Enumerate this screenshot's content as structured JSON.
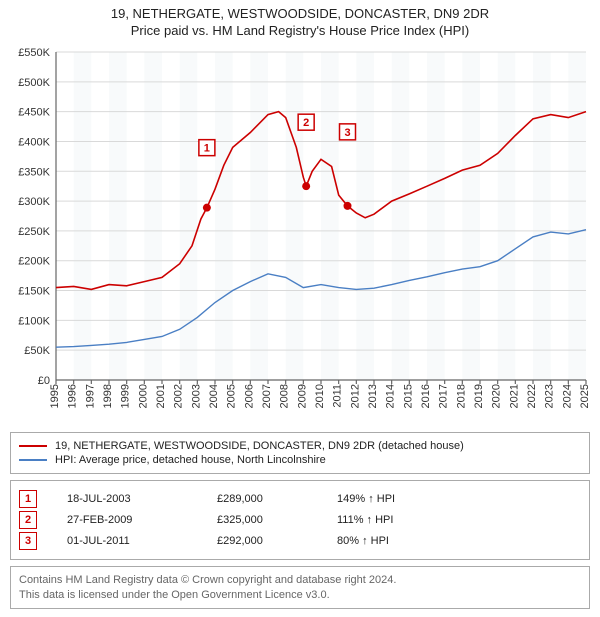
{
  "title1": "19, NETHERGATE, WESTWOODSIDE, DONCASTER, DN9 2DR",
  "title2": "Price paid vs. HM Land Registry's House Price Index (HPI)",
  "chart": {
    "type": "line",
    "background_color": "#ffffff",
    "band_color": "#f4f6f9",
    "grid_color": "#d9d9d9",
    "axis_color": "#666666",
    "label_color": "#333333",
    "label_fontsize": 11,
    "ylim": [
      0,
      550000
    ],
    "ytick_step": 50000,
    "yticks": [
      "£0",
      "£50K",
      "£100K",
      "£150K",
      "£200K",
      "£250K",
      "£300K",
      "£350K",
      "£400K",
      "£450K",
      "£500K",
      "£550K"
    ],
    "xlim": [
      1995,
      2025
    ],
    "xticks": [
      1995,
      1996,
      1997,
      1998,
      1999,
      2000,
      2001,
      2002,
      2003,
      2004,
      2005,
      2006,
      2007,
      2008,
      2009,
      2010,
      2011,
      2012,
      2013,
      2014,
      2015,
      2016,
      2017,
      2018,
      2019,
      2020,
      2021,
      2022,
      2023,
      2024,
      2025
    ],
    "series": [
      {
        "name": "property",
        "color": "#cc0000",
        "line_width": 1.6,
        "points": [
          [
            1995,
            155000
          ],
          [
            1996,
            157000
          ],
          [
            1997,
            152000
          ],
          [
            1998,
            160000
          ],
          [
            1999,
            158000
          ],
          [
            2000,
            165000
          ],
          [
            2001,
            172000
          ],
          [
            2002,
            195000
          ],
          [
            2002.7,
            225000
          ],
          [
            2003.2,
            270000
          ],
          [
            2003.54,
            289000
          ],
          [
            2004,
            320000
          ],
          [
            2004.5,
            360000
          ],
          [
            2005,
            390000
          ],
          [
            2006,
            415000
          ],
          [
            2007,
            445000
          ],
          [
            2007.6,
            450000
          ],
          [
            2008,
            440000
          ],
          [
            2008.6,
            390000
          ],
          [
            2009,
            340000
          ],
          [
            2009.16,
            325000
          ],
          [
            2009.5,
            350000
          ],
          [
            2010,
            370000
          ],
          [
            2010.6,
            358000
          ],
          [
            2011,
            310000
          ],
          [
            2011.5,
            292000
          ],
          [
            2012,
            280000
          ],
          [
            2012.5,
            272000
          ],
          [
            2013,
            278000
          ],
          [
            2014,
            300000
          ],
          [
            2015,
            312000
          ],
          [
            2016,
            325000
          ],
          [
            2017,
            338000
          ],
          [
            2018,
            352000
          ],
          [
            2019,
            360000
          ],
          [
            2020,
            380000
          ],
          [
            2021,
            410000
          ],
          [
            2022,
            438000
          ],
          [
            2023,
            445000
          ],
          [
            2024,
            440000
          ],
          [
            2025,
            450000
          ]
        ]
      },
      {
        "name": "hpi",
        "color": "#4a7fc4",
        "line_width": 1.4,
        "points": [
          [
            1995,
            55000
          ],
          [
            1996,
            56000
          ],
          [
            1997,
            58000
          ],
          [
            1998,
            60000
          ],
          [
            1999,
            63000
          ],
          [
            2000,
            68000
          ],
          [
            2001,
            73000
          ],
          [
            2002,
            85000
          ],
          [
            2003,
            105000
          ],
          [
            2004,
            130000
          ],
          [
            2005,
            150000
          ],
          [
            2006,
            165000
          ],
          [
            2007,
            178000
          ],
          [
            2008,
            172000
          ],
          [
            2009,
            155000
          ],
          [
            2010,
            160000
          ],
          [
            2011,
            155000
          ],
          [
            2012,
            152000
          ],
          [
            2013,
            154000
          ],
          [
            2014,
            160000
          ],
          [
            2015,
            167000
          ],
          [
            2016,
            173000
          ],
          [
            2017,
            180000
          ],
          [
            2018,
            186000
          ],
          [
            2019,
            190000
          ],
          [
            2020,
            200000
          ],
          [
            2021,
            220000
          ],
          [
            2022,
            240000
          ],
          [
            2023,
            248000
          ],
          [
            2024,
            245000
          ],
          [
            2025,
            252000
          ]
        ]
      }
    ],
    "sale_markers": [
      {
        "n": "1",
        "year": 2003.54,
        "price": 289000,
        "box_y_offset": -68
      },
      {
        "n": "2",
        "year": 2009.16,
        "price": 325000,
        "box_y_offset": -72
      },
      {
        "n": "3",
        "year": 2011.5,
        "price": 292000,
        "box_y_offset": -82
      }
    ],
    "marker_dot_color": "#cc0000",
    "marker_dot_radius": 4
  },
  "legend": {
    "items": [
      {
        "color": "#cc0000",
        "label": "19, NETHERGATE, WESTWOODSIDE, DONCASTER, DN9 2DR (detached house)"
      },
      {
        "color": "#4a7fc4",
        "label": "HPI: Average price, detached house, North Lincolnshire"
      }
    ]
  },
  "sales": [
    {
      "n": "1",
      "date": "18-JUL-2003",
      "price": "£289,000",
      "pct": "149% ↑ HPI"
    },
    {
      "n": "2",
      "date": "27-FEB-2009",
      "price": "£325,000",
      "pct": "111% ↑ HPI"
    },
    {
      "n": "3",
      "date": "01-JUL-2011",
      "price": "£292,000",
      "pct": "80% ↑ HPI"
    }
  ],
  "license": {
    "line1": "Contains HM Land Registry data © Crown copyright and database right 2024.",
    "line2": "This data is licensed under the Open Government Licence v3.0."
  }
}
